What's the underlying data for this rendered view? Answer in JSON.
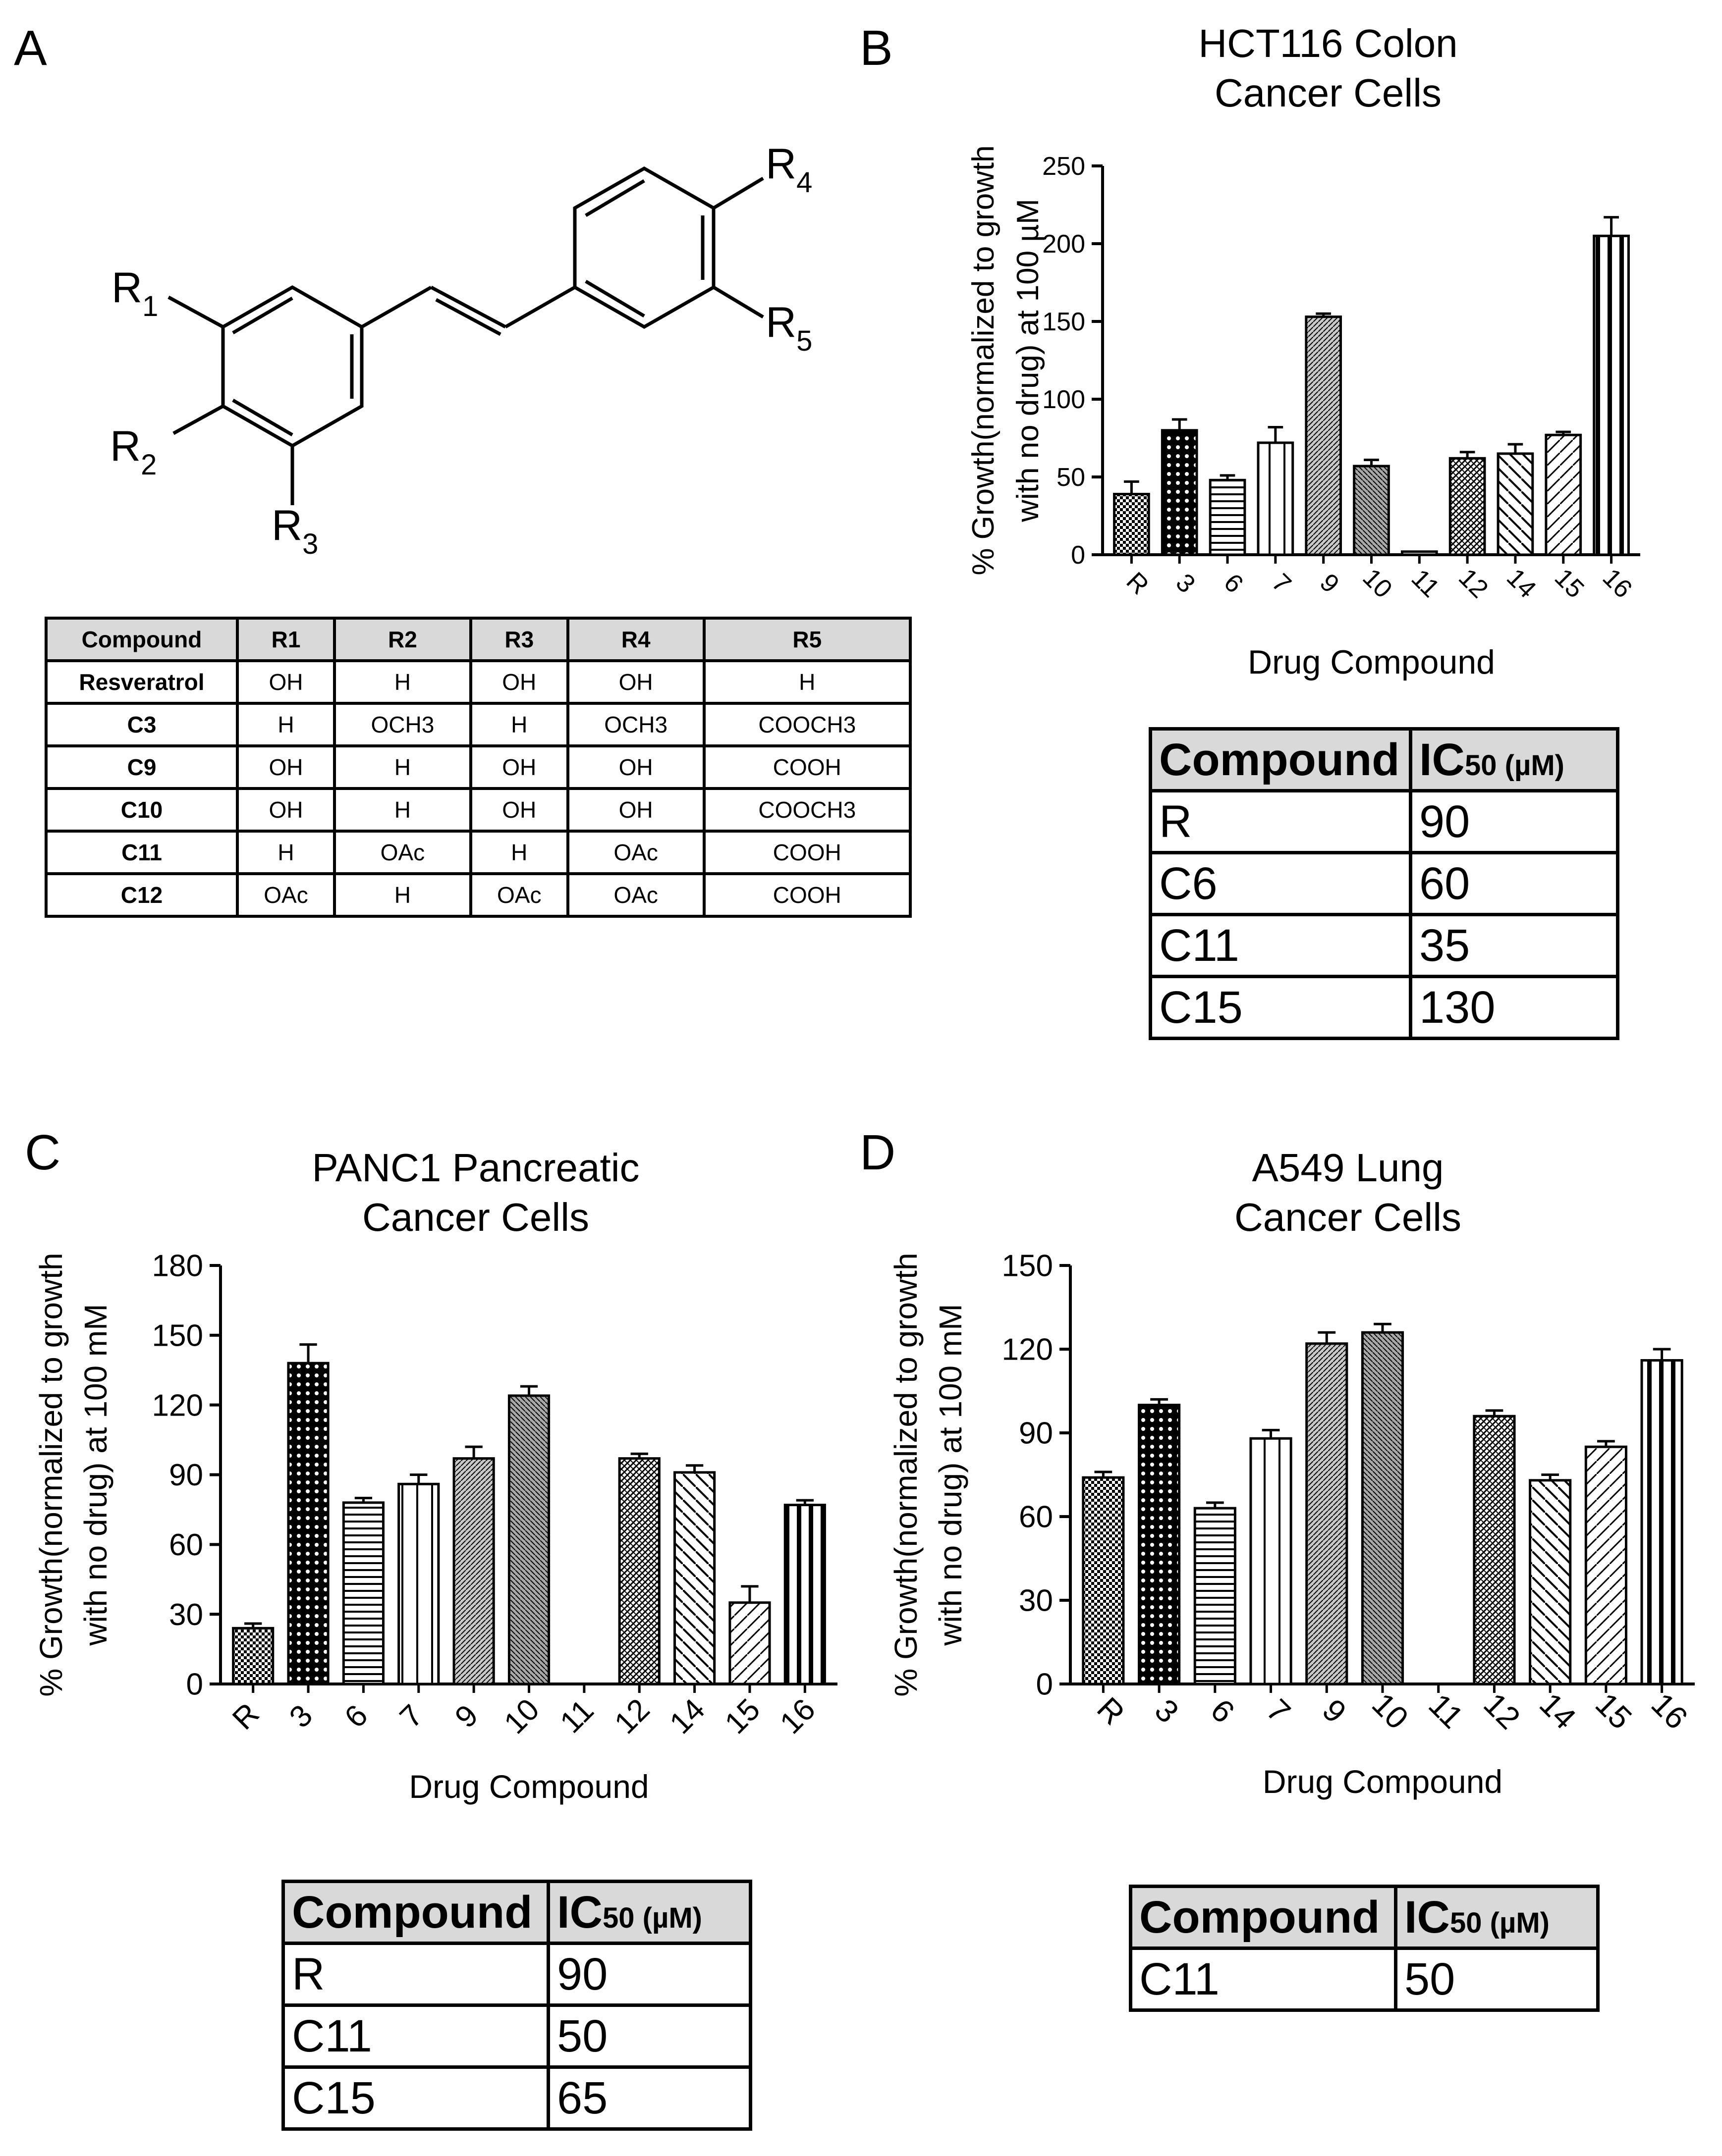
{
  "panels": {
    "a": "A",
    "b": "B",
    "c": "C",
    "d": "D"
  },
  "structure": {
    "r1": "R",
    "r1_sub": "1",
    "r2": "R",
    "r2_sub": "2",
    "r3": "R",
    "r3_sub": "3",
    "r4": "R",
    "r4_sub": "4",
    "r5": "R",
    "r5_sub": "5"
  },
  "substituent_table": {
    "headers": [
      "Compound",
      "R1",
      "R2",
      "R3",
      "R4",
      "R5"
    ],
    "rows": [
      [
        "Resveratrol",
        "OH",
        "H",
        "OH",
        "OH",
        "H"
      ],
      [
        "C3",
        "H",
        "OCH3",
        "H",
        "OCH3",
        "COOCH3"
      ],
      [
        "C9",
        "OH",
        "H",
        "OH",
        "OH",
        "COOH"
      ],
      [
        "C10",
        "OH",
        "H",
        "OH",
        "OH",
        "COOCH3"
      ],
      [
        "C11",
        "H",
        "OAc",
        "H",
        "OAc",
        "COOH"
      ],
      [
        "C12",
        "OAc",
        "H",
        "OAc",
        "OAc",
        "COOH"
      ]
    ]
  },
  "chart_data": [
    {
      "id": "B",
      "type": "bar",
      "title": "HCT116 Colon\nCancer Cells",
      "xlabel": "Drug Compound",
      "ylabel": "% Growth(normalized to growth\nwith no drug) at 100 µM",
      "ylim": [
        0,
        250
      ],
      "yticks": [
        0,
        50,
        100,
        150,
        200,
        250
      ],
      "categories": [
        "R",
        "3",
        "6",
        "7",
        "9",
        "10",
        "11",
        "12",
        "14",
        "15",
        "16"
      ],
      "values": [
        39,
        80,
        48,
        72,
        153,
        57,
        2,
        62,
        65,
        77,
        205
      ],
      "errors": [
        8,
        7,
        3,
        10,
        2,
        4,
        0,
        4,
        6,
        2,
        12
      ]
    },
    {
      "id": "C",
      "type": "bar",
      "title": "PANC1 Pancreatic\nCancer Cells",
      "xlabel": "Drug Compound",
      "ylabel": "% Growth(normalized to growth\nwith no drug) at 100 mM",
      "ylim": [
        0,
        180
      ],
      "yticks": [
        0,
        30,
        60,
        90,
        120,
        150,
        180
      ],
      "categories": [
        "R",
        "3",
        "6",
        "7",
        "9",
        "10",
        "11",
        "12",
        "14",
        "15",
        "16"
      ],
      "values": [
        24,
        138,
        78,
        86,
        97,
        124,
        0,
        97,
        91,
        35,
        77
      ],
      "errors": [
        2,
        8,
        2,
        4,
        5,
        4,
        0,
        2,
        3,
        7,
        2
      ]
    },
    {
      "id": "D",
      "type": "bar",
      "title": "A549 Lung\nCancer Cells",
      "xlabel": "Drug Compound",
      "ylabel": "% Growth(normalized to growth\nwith no drug) at 100 mM",
      "ylim": [
        0,
        150
      ],
      "yticks": [
        0,
        30,
        60,
        90,
        120,
        150
      ],
      "categories": [
        "R",
        "3",
        "6",
        "7",
        "9",
        "10",
        "11",
        "12",
        "14",
        "15",
        "16"
      ],
      "values": [
        74,
        100,
        63,
        88,
        122,
        126,
        0,
        96,
        73,
        85,
        116
      ],
      "errors": [
        2,
        2,
        2,
        3,
        4,
        3,
        0,
        2,
        2,
        2,
        4
      ]
    }
  ],
  "ic50_tables": {
    "b": {
      "header_compound": "Compound",
      "header_ic": "IC",
      "header_ic_sub": "50 (µM)",
      "rows": [
        [
          "R",
          "90"
        ],
        [
          "C6",
          "60"
        ],
        [
          "C11",
          "35"
        ],
        [
          "C15",
          "130"
        ]
      ]
    },
    "c": {
      "header_compound": "Compound",
      "header_ic": "IC",
      "header_ic_sub": "50 (µM)",
      "rows": [
        [
          "R",
          "90"
        ],
        [
          "C11",
          "50"
        ],
        [
          "C15",
          "65"
        ]
      ]
    },
    "d": {
      "header_compound": "Compound",
      "header_ic": "IC",
      "header_ic_sub": "50 (µM)",
      "rows": [
        [
          "C11",
          "50"
        ]
      ]
    }
  }
}
